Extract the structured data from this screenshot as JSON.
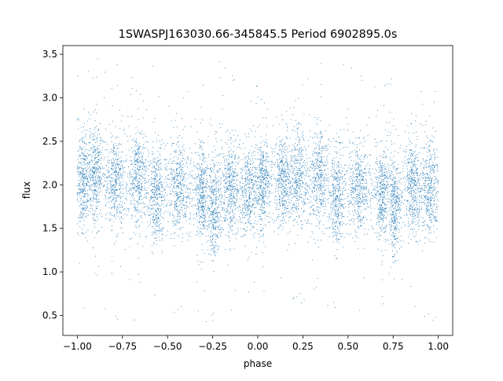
{
  "chart_data": {
    "type": "scatter",
    "title": "1SWASPJ163030.66-345845.5 Period 6902895.0s",
    "xlabel": "phase",
    "ylabel": "flux",
    "xlim": [
      -1.08,
      1.08
    ],
    "ylim": [
      0.27,
      3.6
    ],
    "x_ticks": [
      -1.0,
      -0.75,
      -0.5,
      -0.25,
      0.0,
      0.25,
      0.5,
      0.75,
      1.0
    ],
    "x_tick_labels": [
      "−1.00",
      "−0.75",
      "−0.50",
      "−0.25",
      "0.00",
      "0.25",
      "0.50",
      "0.75",
      "1.00"
    ],
    "y_ticks": [
      0.5,
      1.0,
      1.5,
      2.0,
      2.5,
      3.0,
      3.5
    ],
    "y_tick_labels": [
      "0.5",
      "1.0",
      "1.5",
      "2.0",
      "2.5",
      "3.0",
      "3.5"
    ],
    "grid": false,
    "marker_color": "#1f77b4",
    "series_shape": {
      "phase_range": [
        -1.0,
        1.0
      ],
      "cycle_period": 1.0,
      "typical_flux": 2.0,
      "typical_spread": 0.35,
      "flux_min": 0.42,
      "flux_max": 3.45,
      "clusters": [
        {
          "x": -0.97,
          "y": 2.05,
          "width": 0.04
        },
        {
          "x": -0.9,
          "y": 2.15,
          "width": 0.035
        },
        {
          "x": -0.79,
          "y": 2.08,
          "width": 0.045
        },
        {
          "x": -0.66,
          "y": 2.1,
          "width": 0.04
        },
        {
          "x": -0.56,
          "y": 1.85,
          "width": 0.035
        },
        {
          "x": -0.44,
          "y": 1.95,
          "width": 0.045
        },
        {
          "x": -0.31,
          "y": 1.85,
          "width": 0.03
        },
        {
          "x": -0.24,
          "y": 1.7,
          "width": 0.03
        },
        {
          "x": -0.15,
          "y": 1.95,
          "width": 0.035
        },
        {
          "x": -0.05,
          "y": 1.9,
          "width": 0.045
        },
        {
          "x": 0.03,
          "y": 2.0,
          "width": 0.035
        },
        {
          "x": 0.14,
          "y": 2.05,
          "width": 0.035
        },
        {
          "x": 0.22,
          "y": 2.1,
          "width": 0.045
        },
        {
          "x": 0.34,
          "y": 2.1,
          "width": 0.04
        },
        {
          "x": 0.44,
          "y": 1.85,
          "width": 0.035
        },
        {
          "x": 0.56,
          "y": 1.95,
          "width": 0.045
        },
        {
          "x": 0.69,
          "y": 1.85,
          "width": 0.03
        },
        {
          "x": 0.76,
          "y": 1.7,
          "width": 0.03
        },
        {
          "x": 0.86,
          "y": 1.95,
          "width": 0.035
        },
        {
          "x": 0.95,
          "y": 1.9,
          "width": 0.045
        }
      ]
    }
  }
}
